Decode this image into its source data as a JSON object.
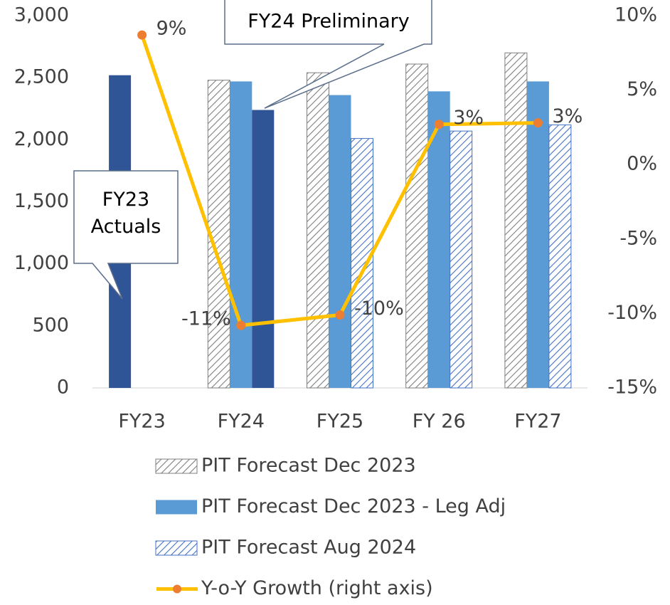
{
  "chart_data": {
    "type": "bar",
    "categories": [
      "FY23",
      "FY24",
      "FY25",
      "FY 26",
      "FY27"
    ],
    "series": [
      {
        "name": "PIT Forecast Dec 2023",
        "color": "#7f7f7f",
        "hatch": true,
        "values": [
          null,
          2480,
          2540,
          2610,
          2700
        ]
      },
      {
        "name": "PIT Forecast Dec 2023 - Leg Adj",
        "color": "#5b9bd5",
        "hatch": false,
        "values": [
          null,
          2470,
          2360,
          2390,
          2470
        ]
      },
      {
        "name": "PIT Forecast Aug 2024",
        "color": "#4472c4",
        "hatch": true,
        "values": [
          null,
          null,
          2010,
          2070,
          2120
        ]
      },
      {
        "name": "Y-o-Y Growth (right axis)",
        "type": "line",
        "axis": "y2",
        "color": "#ffc000",
        "marker_color": "#ed7d31",
        "values": [
          8.7,
          -10.8,
          -10.1,
          2.7,
          2.8
        ],
        "value_labels": [
          "9%",
          "-11%",
          "-10%",
          "3%",
          "3%"
        ]
      },
      {
        "color": "#2f5597",
        "hatch": false,
        "values": [
          2520,
          2240,
          null,
          null,
          null
        ]
      }
    ],
    "annotations": [
      "FY24 Preliminary",
      "FY23 Actuals"
    ],
    "ylim": [
      0,
      3000
    ],
    "yticks": [
      0,
      500,
      {
        "value": 1000,
        "label": "1,000"
      },
      {
        "value": 1500,
        "label": "1,500"
      },
      {
        "value": 2000,
        "label": "2,000"
      },
      {
        "value": 2500,
        "label": "2,500"
      },
      {
        "value": 3000,
        "label": "3,000"
      }
    ],
    "y2lim": [
      -15,
      10
    ],
    "y2ticks": [
      {
        "value": -15,
        "label": "-15%"
      },
      {
        "value": -10,
        "label": "-10%"
      },
      {
        "value": -5,
        "label": "-5%"
      },
      {
        "value": 0,
        "label": "0%"
      },
      {
        "value": 5,
        "label": "5%"
      },
      {
        "value": 10,
        "label": "10%"
      }
    ],
    "grid": true,
    "legend": "bottom"
  }
}
